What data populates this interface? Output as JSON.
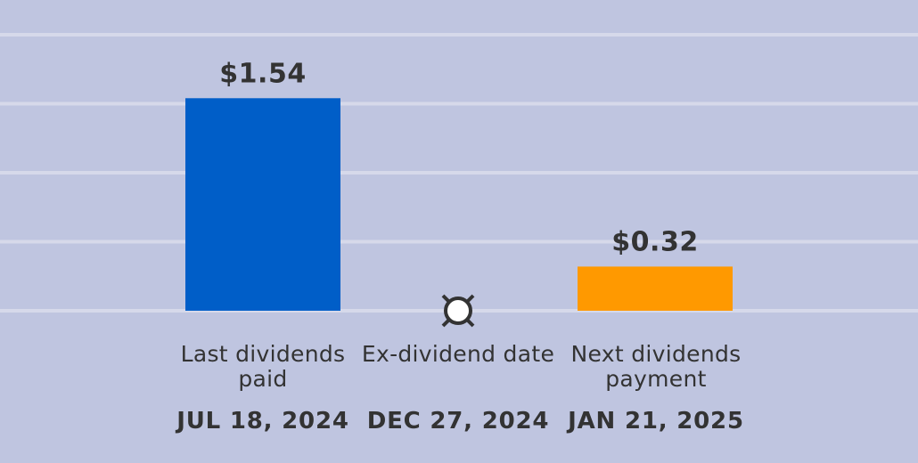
{
  "chart_data": {
    "type": "bar",
    "categories": [
      "Last dividends paid",
      "Ex-dividend date",
      "Next dividends payment"
    ],
    "values": [
      1.54,
      null,
      0.32
    ],
    "value_labels": [
      "$1.54",
      "",
      "$0.32"
    ],
    "dates": [
      "JUL 18, 2024",
      "DEC 27, 2024",
      "JAN 21, 2025"
    ],
    "ylim": [
      0,
      2.0
    ],
    "grid": true,
    "colors": {
      "background": "#bfc5e0",
      "gridline": "#d6d9ea",
      "last_paid_bar": "#005ec8",
      "next_payment_bar": "#ff9900",
      "text": "#333333",
      "marker_fill": "#ffffff",
      "marker_stroke": "#333333"
    }
  },
  "labels": {
    "col0": "Last dividends paid",
    "col1": "Ex-dividend date",
    "col2": "Next dividends payment",
    "date0": "JUL 18, 2024",
    "date1": "DEC 27, 2024",
    "date2": "JAN 21, 2025",
    "value0": "$1.54",
    "value2": "$0.32"
  }
}
